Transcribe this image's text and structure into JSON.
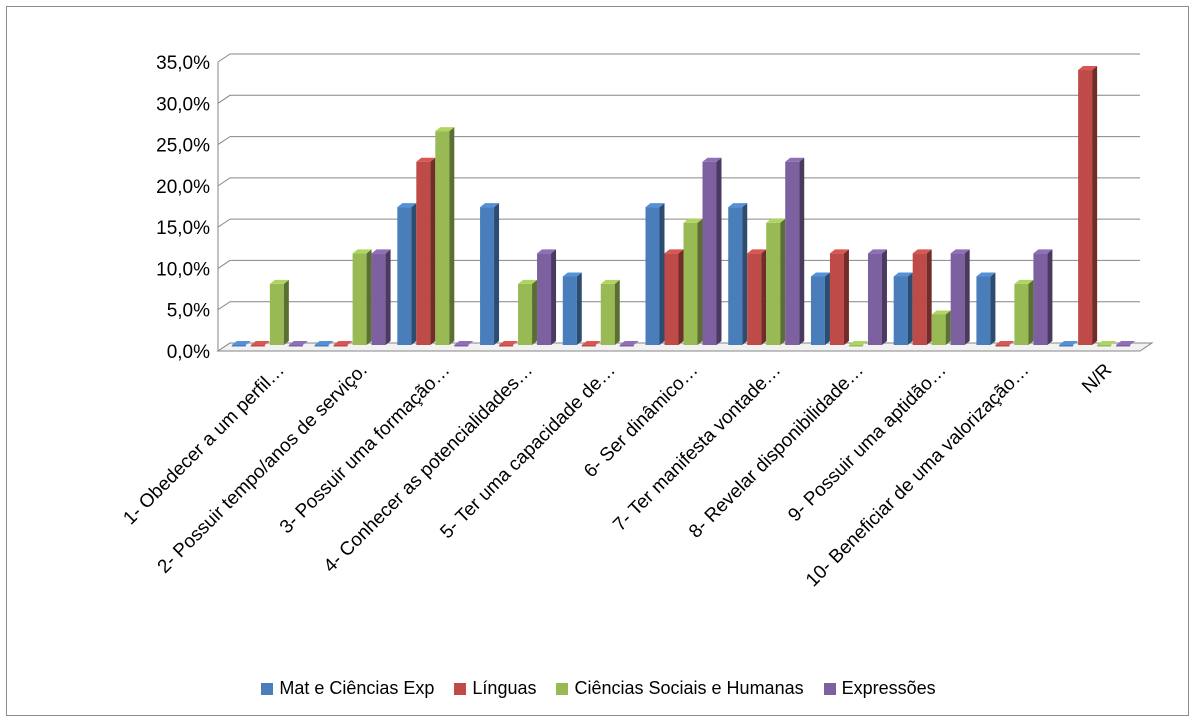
{
  "chart_data": {
    "type": "bar",
    "style": "3d-clustered-column",
    "title": "",
    "xlabel": "",
    "ylabel": "",
    "ylim": [
      0,
      35
    ],
    "y_tick_labels": [
      "0,0%",
      "5,0%",
      "10,0%",
      "15,0%",
      "20,0%",
      "25,0%",
      "30,0%",
      "35,0%"
    ],
    "grid": true,
    "legend_position": "bottom",
    "categories": [
      "1- Obedecer a um perfil…",
      "2- Possuir tempo/anos de serviço.",
      "3- Possuir uma formação…",
      "4- Conhecer as potencialidades…",
      "5- Ter uma capacidade de…",
      "6- Ser dinâmico…",
      "7- Ter manifesta vontade…",
      "8- Revelar disponibilidade…",
      "9- Possuir uma aptidão…",
      "10- Beneficiar de uma valorização…",
      "N/R"
    ],
    "series": [
      {
        "name": "Mat e Ciências Exp",
        "color": "#4a7ebb",
        "values": [
          0,
          0,
          16.7,
          16.7,
          8.3,
          16.7,
          16.7,
          8.3,
          8.3,
          8.3,
          0
        ]
      },
      {
        "name": "Línguas",
        "color": "#be4b48",
        "values": [
          0,
          0,
          22.2,
          0,
          0,
          11.1,
          11.1,
          11.1,
          11.1,
          0,
          33.3
        ]
      },
      {
        "name": "Ciências Sociais e Humanas",
        "color": "#98b954",
        "values": [
          7.4,
          11.1,
          25.9,
          7.4,
          7.4,
          14.8,
          14.8,
          0,
          3.7,
          7.4,
          0
        ]
      },
      {
        "name": "Expressões",
        "color": "#7d60a0",
        "values": [
          0,
          11.1,
          0,
          11.1,
          0,
          22.2,
          22.2,
          11.1,
          11.1,
          11.1,
          0
        ]
      }
    ]
  }
}
